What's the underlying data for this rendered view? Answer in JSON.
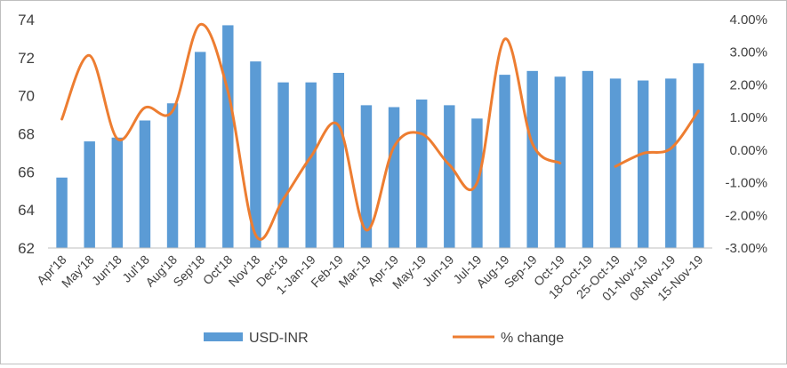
{
  "chart_data": {
    "type": "bar+line",
    "title": "",
    "xlabel": "",
    "ylabel": "",
    "categories": [
      "Apr'18",
      "May'18",
      "Jun'18",
      "Jul'18",
      "Aug'18",
      "Sep'18",
      "Oct'18",
      "Nov'18",
      "Dec'18",
      "1-Jan-19",
      "Feb-19",
      "Mar-19",
      "Apr-19",
      "May-19",
      "Jun-19",
      "Jul-19",
      "Aug-19",
      "Sep-19",
      "Oct-19",
      "18-Oct-19",
      "25-Oct-19",
      "01-Nov-19",
      "08-Nov-19",
      "15-Nov-19"
    ],
    "series": [
      {
        "name": "USD-INR",
        "type": "bar",
        "axis": "left",
        "color": "#5b9bd5",
        "values": [
          65.7,
          67.6,
          67.8,
          68.7,
          69.6,
          72.3,
          73.7,
          71.8,
          70.7,
          70.7,
          71.2,
          69.5,
          69.4,
          69.8,
          69.5,
          68.8,
          71.1,
          71.3,
          71.0,
          71.3,
          70.9,
          70.8,
          70.9,
          71.7
        ]
      },
      {
        "name": "% change",
        "type": "line",
        "axis": "right",
        "color": "#ed7d31",
        "values": [
          0.95,
          2.9,
          0.35,
          1.3,
          1.2,
          3.85,
          1.8,
          -2.6,
          -1.5,
          -0.2,
          0.75,
          -2.45,
          0.1,
          0.5,
          -0.45,
          -1.0,
          3.4,
          0.2,
          -0.4,
          null,
          -0.5,
          -0.1,
          0.05,
          1.2
        ]
      }
    ],
    "y_left": {
      "min": 62,
      "max": 74,
      "ticks": [
        "62",
        "64",
        "66",
        "68",
        "70",
        "72",
        "74"
      ]
    },
    "y_right": {
      "min": -3,
      "max": 4,
      "ticks": [
        "-3.00%",
        "-2.00%",
        "-1.00%",
        "0.00%",
        "1.00%",
        "2.00%",
        "3.00%",
        "4.00%"
      ]
    },
    "grid": false,
    "legend_position": "bottom"
  }
}
